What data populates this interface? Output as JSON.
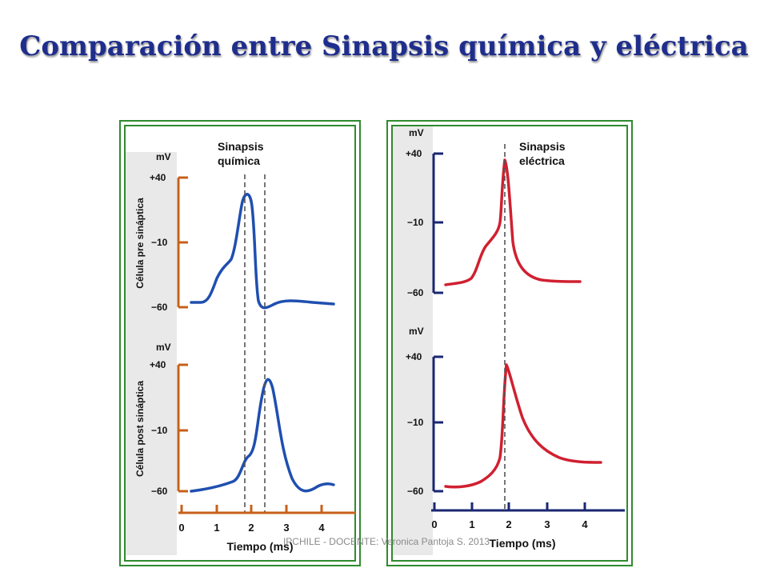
{
  "title": "Comparación entre Sinapsis química y eléctrica",
  "footer": "IPCHILE - DOCENTE: Veronica Pantoja S. 2013",
  "left_panel": {
    "label_line1": "Sinapsis",
    "label_line2": "química",
    "top_ylabel": "Célula pre sináptica",
    "bottom_ylabel": "Célula post sináptica",
    "unit": "mV",
    "yticks": [
      "+40",
      "−10",
      "−60"
    ],
    "xticks": [
      "0",
      "1",
      "2",
      "3",
      "4"
    ],
    "xlabel": "Tiempo (ms)"
  },
  "right_panel": {
    "label_line1": "Sinapsis",
    "label_line2": "eléctrica",
    "unit": "mV",
    "yticks": [
      "+40",
      "−10",
      "−60"
    ],
    "xticks": [
      "0",
      "1",
      "2",
      "3",
      "4"
    ],
    "xlabel": "Tiempo (ms)"
  },
  "colors": {
    "title": "#1f2e8c",
    "frame": "#2f8a2f",
    "chemical_axis": "#c8601a",
    "chemical_trace": "#1f4fb0",
    "electrical_axis": "#1a2770",
    "electrical_trace": "#d02030"
  }
}
